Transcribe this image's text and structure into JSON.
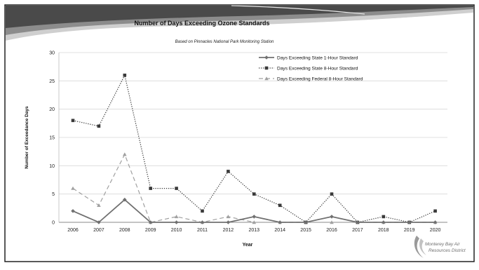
{
  "slide": {
    "logo": {
      "line1": "Monterey Bay Air",
      "line2": "Resources District"
    }
  },
  "chart_data": {
    "type": "line",
    "title": "Number of Days Exceeding Ozone Standards",
    "subtitle": "Based on Pinnacles National Park Monitoring Station",
    "xlabel": "Year",
    "ylabel": "Number of Exceedance Days",
    "ylim": [
      0,
      30
    ],
    "yticks": [
      0,
      5,
      10,
      15,
      20,
      25,
      30
    ],
    "grid": true,
    "legend_position": "top-right",
    "categories": [
      "2006",
      "2007",
      "2008",
      "2009",
      "2010",
      "2011",
      "2012",
      "2013",
      "2014",
      "2015",
      "2016",
      "2017",
      "2018",
      "2019",
      "2020"
    ],
    "series": [
      {
        "name": "Days Exceeding State 1-Hour Standard",
        "style": "solid",
        "marker": "diamond",
        "color": "#707070",
        "values": [
          2,
          0,
          4,
          0,
          0,
          0,
          0,
          1,
          0,
          0,
          1,
          0,
          0,
          0,
          0
        ]
      },
      {
        "name": "Days Exceeding State 8-Hour Standard",
        "style": "dotted",
        "marker": "square",
        "color": "#3a3a3a",
        "values": [
          18,
          17,
          26,
          6,
          6,
          2,
          9,
          5,
          3,
          0,
          5,
          0,
          1,
          0,
          2
        ]
      },
      {
        "name": "Days Exceeding Federal 8-Hour Standard",
        "style": "dashed",
        "marker": "triangle",
        "color": "#a0a0a0",
        "values": [
          6,
          3,
          12,
          0,
          1,
          0,
          1,
          0,
          0,
          0,
          0,
          0,
          0,
          0,
          0
        ]
      }
    ]
  }
}
